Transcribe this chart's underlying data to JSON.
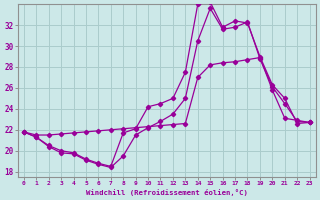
{
  "xlabel": "Windchill (Refroidissement éolien,°C)",
  "background_color": "#cce8e8",
  "grid_color": "#aacccc",
  "line_color": "#990099",
  "xlim": [
    -0.5,
    23.5
  ],
  "ylim": [
    17.5,
    34.0
  ],
  "yticks": [
    18,
    20,
    22,
    24,
    26,
    28,
    30,
    32
  ],
  "xticks": [
    0,
    1,
    2,
    3,
    4,
    5,
    6,
    7,
    8,
    9,
    10,
    11,
    12,
    13,
    14,
    15,
    16,
    17,
    18,
    19,
    20,
    21,
    22,
    23
  ],
  "line1_x": [
    0,
    1,
    2,
    3,
    4,
    5,
    6,
    7,
    8,
    9,
    10,
    11,
    12,
    13,
    14,
    15,
    16,
    17,
    18,
    19,
    20,
    21,
    22,
    23
  ],
  "line1_y": [
    21.8,
    21.3,
    20.4,
    19.8,
    19.7,
    19.1,
    18.7,
    18.4,
    19.5,
    21.5,
    22.2,
    22.8,
    23.5,
    25.0,
    30.5,
    33.6,
    31.6,
    31.8,
    32.3,
    28.8,
    26.1,
    24.5,
    22.8,
    22.7
  ],
  "line2_x": [
    0,
    1,
    2,
    3,
    4,
    5,
    6,
    7,
    8,
    9,
    10,
    11,
    12,
    13,
    14,
    15,
    16,
    17,
    18,
    19,
    20,
    21,
    22,
    23
  ],
  "line2_y": [
    21.8,
    21.3,
    20.5,
    20.0,
    19.8,
    19.2,
    18.8,
    18.5,
    21.7,
    22.1,
    24.2,
    24.5,
    25.0,
    27.5,
    34.0,
    34.2,
    31.8,
    32.4,
    32.2,
    29.0,
    26.3,
    25.0,
    22.6,
    22.7
  ],
  "line3_x": [
    0,
    1,
    2,
    3,
    4,
    5,
    6,
    7,
    8,
    9,
    10,
    11,
    12,
    13,
    14,
    15,
    16,
    17,
    18,
    19,
    20,
    21,
    22,
    23
  ],
  "line3_y": [
    21.8,
    21.5,
    21.5,
    21.6,
    21.7,
    21.8,
    21.9,
    22.0,
    22.1,
    22.2,
    22.3,
    22.4,
    22.5,
    22.6,
    27.0,
    28.2,
    28.4,
    28.5,
    28.7,
    28.9,
    25.8,
    23.1,
    22.9,
    22.7
  ]
}
